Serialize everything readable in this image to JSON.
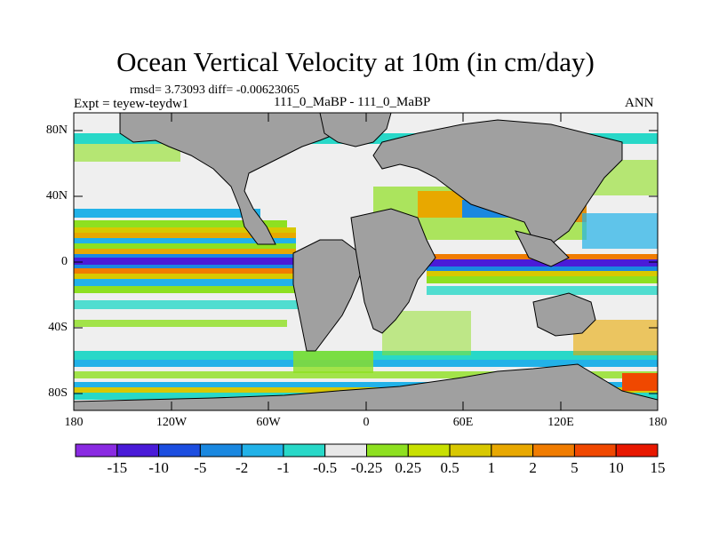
{
  "title": "Ocean Vertical Velocity at 10m (in cm/day)",
  "stats": "rmsd= 3.73093 diff= -0.00623065",
  "expt": "Expt = teyew-teydw1",
  "case": "111_0_MaBP - 111_0_MaBP",
  "season": "ANN",
  "lat_labels": [
    "80N",
    "40N",
    "0",
    "40S",
    "80S"
  ],
  "lon_labels": [
    "180",
    "120W",
    "60W",
    "0",
    "60E",
    "120E",
    "180"
  ],
  "colorbar": {
    "labels": [
      "-15",
      "-10",
      "-5",
      "-2",
      "-1",
      "-0.5",
      "-0.25",
      "0.25",
      "0.5",
      "1",
      "2",
      "5",
      "10",
      "15"
    ],
    "colors": [
      "#8a2be2",
      "#4a1bd8",
      "#1c4ee0",
      "#1a88e0",
      "#22b2e8",
      "#28d8c8",
      "#e8e8e8",
      "#8ee020",
      "#c8e000",
      "#d8c800",
      "#e8a800",
      "#f07c00",
      "#f04800",
      "#e81800"
    ]
  },
  "colors": {
    "land": "#a0a0a0",
    "ocean_bg": "#efefef"
  }
}
